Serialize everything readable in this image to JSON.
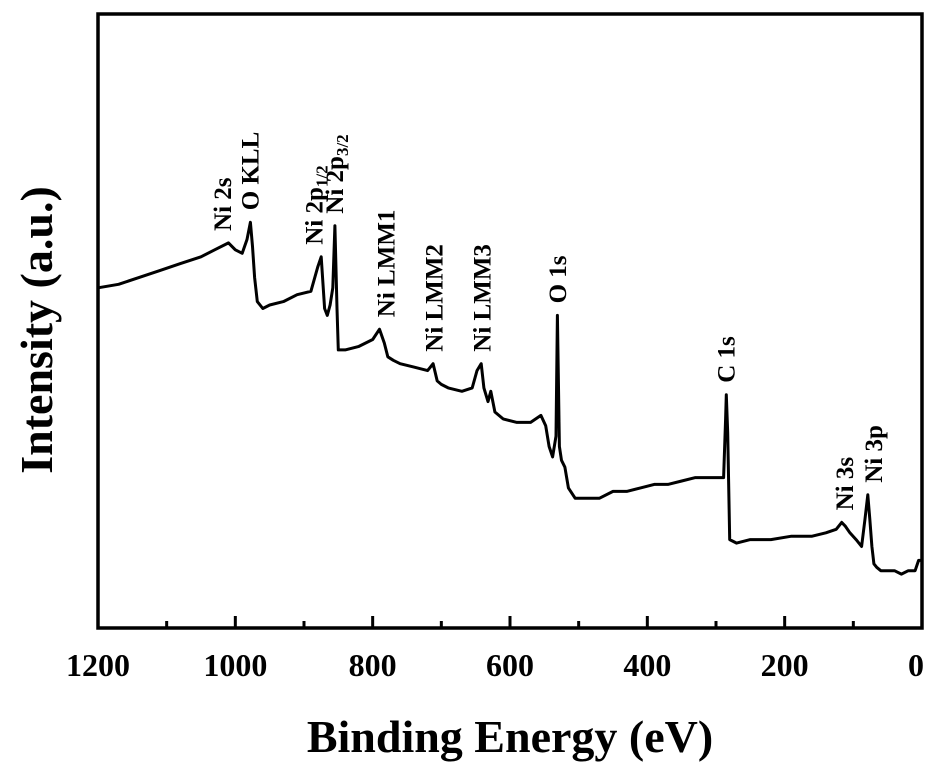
{
  "chart_data": {
    "type": "line",
    "title": "",
    "xlabel": "Binding Energy (eV)",
    "ylabel": "Intensity (a.u.)",
    "xlim": [
      1200,
      0
    ],
    "x_reversed": true,
    "y_ticks_shown": false,
    "xticks": [
      1200,
      1000,
      800,
      600,
      400,
      200,
      0
    ],
    "grid": false,
    "legend": "none",
    "line_color": "#000000",
    "series": [
      {
        "x": [
          1200,
          1170,
          1140,
          1110,
          1080,
          1050,
          1030,
          1010,
          1000,
          990,
          983,
          978,
          975,
          972,
          968,
          960,
          950,
          930,
          910,
          890,
          880,
          875,
          870,
          866,
          862,
          858,
          855,
          852,
          850,
          840,
          820,
          800,
          790,
          783,
          778,
          770,
          760,
          740,
          720,
          712,
          706,
          700,
          690,
          670,
          655,
          648,
          642,
          638,
          632,
          628,
          622,
          610,
          590,
          570,
          555,
          548,
          543,
          538,
          533,
          531,
          528,
          525,
          520,
          515,
          505,
          490,
          470,
          450,
          430,
          410,
          390,
          370,
          350,
          330,
          310,
          295,
          289,
          286,
          285,
          283,
          280,
          270,
          250,
          220,
          190,
          160,
          140,
          125,
          117,
          112,
          105,
          96,
          88,
          83,
          79,
          76,
          73,
          70,
          66,
          60,
          50,
          40,
          30,
          20,
          10,
          5,
          0
        ],
        "y": [
          76,
          77,
          79,
          81,
          83,
          85,
          87,
          89,
          87,
          86,
          90,
          95,
          88,
          79,
          72,
          70,
          71,
          72,
          74,
          75,
          82,
          85,
          70,
          68,
          71,
          76,
          94,
          70,
          58,
          58,
          59,
          61,
          64,
          60,
          56,
          55,
          54,
          53,
          52,
          54,
          49,
          48,
          47,
          46,
          47,
          52,
          54,
          47,
          43,
          46,
          40,
          38,
          37,
          37,
          39,
          36,
          30,
          27,
          33,
          68,
          30,
          26,
          24,
          18,
          15,
          15,
          15,
          17,
          17,
          18,
          19,
          19,
          20,
          21,
          21,
          21,
          21,
          38,
          45,
          34,
          3,
          2,
          3,
          3,
          4,
          4,
          5,
          6,
          8,
          7,
          5,
          3,
          1,
          9,
          16,
          9,
          1,
          -4,
          -5,
          -6,
          -6,
          -6,
          -7,
          -6,
          -6,
          -3,
          -3
        ]
      }
    ],
    "annotations": [
      {
        "text": "Ni 2s",
        "x": 1018
      },
      {
        "text": "O KLL",
        "x": 978
      },
      {
        "text": "Ni 2p",
        "sub": "1/2",
        "x": 885
      },
      {
        "text": "Ni 2p",
        "sub": "3/2",
        "x": 855
      },
      {
        "text": "Ni LMM1",
        "x": 780
      },
      {
        "text": "Ni LMM2",
        "x": 710
      },
      {
        "text": "Ni LMM3",
        "x": 640
      },
      {
        "text": "O 1s",
        "x": 530
      },
      {
        "text": "C 1s",
        "x": 285
      },
      {
        "text": "Ni 3s",
        "x": 112
      },
      {
        "text": "Ni 3p",
        "x": 70
      }
    ]
  }
}
